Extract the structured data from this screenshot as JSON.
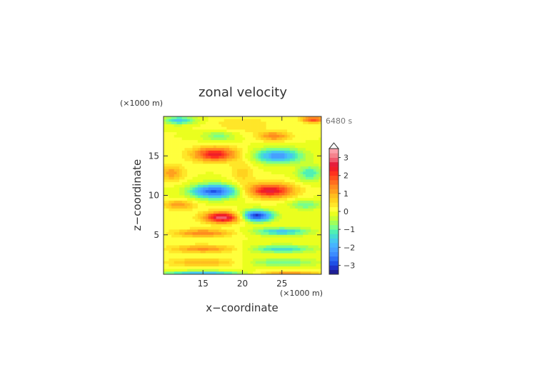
{
  "chart_data": {
    "type": "heatmap",
    "title": "zonal velocity",
    "xlabel": "x−coordinate",
    "ylabel": "z−coordinate",
    "x_unit_label": "(×1000 m)",
    "y_unit_label": "(×1000 m)",
    "time_label": "6480 s",
    "xlim": [
      10,
      30
    ],
    "ylim": [
      0,
      20
    ],
    "x_ticks": [
      15,
      20,
      25
    ],
    "y_ticks": [
      5,
      10,
      15
    ],
    "colorbar": {
      "levels": [
        -3.5,
        -3.25,
        -3,
        -2.75,
        -2.5,
        -2.25,
        -2,
        -1.75,
        -1.5,
        -1.25,
        -1,
        -0.75,
        -0.5,
        -0.25,
        0,
        0.25,
        0.5,
        0.75,
        1,
        1.25,
        1.5,
        1.75,
        2,
        2.25,
        2.5,
        2.75,
        3,
        3.25,
        3.5
      ],
      "colors": [
        "#1e1e96",
        "#1e32c8",
        "#1e50e6",
        "#2d6ef5",
        "#3c8cff",
        "#46a0ff",
        "#46b4ff",
        "#46c8f0",
        "#46dcd2",
        "#50f0b4",
        "#78ff8c",
        "#a0ff5a",
        "#c8ff32",
        "#eaff1e",
        "#ffff3c",
        "#ffe628",
        "#ffd21e",
        "#ffbe1e",
        "#ffa01e",
        "#ff8c1e",
        "#ff6e1e",
        "#ff501e",
        "#ff321e",
        "#f01e28",
        "#e61e3c",
        "#f05a6e",
        "#f5828c",
        "#faa0aa"
      ],
      "tick_labels": [
        "3",
        "2",
        "1",
        "0",
        "−1",
        "−2",
        "−3"
      ],
      "tick_values": [
        3,
        2,
        1,
        0,
        -1,
        -2,
        -3
      ]
    },
    "field": {
      "description_free": true,
      "features": [
        {
          "x": 16.5,
          "z": 15.2,
          "sx": 2.8,
          "sz": 0.9,
          "amp": 2.4
        },
        {
          "x": 24.5,
          "z": 15.0,
          "sx": 3.0,
          "sz": 0.9,
          "amp": -2.2
        },
        {
          "x": 16.5,
          "z": 10.5,
          "sx": 3.0,
          "sz": 0.9,
          "amp": -2.8
        },
        {
          "x": 23.5,
          "z": 10.6,
          "sx": 3.0,
          "sz": 0.9,
          "amp": 2.6
        },
        {
          "x": 17.5,
          "z": 7.2,
          "sx": 2.4,
          "sz": 0.7,
          "amp": 3.0
        },
        {
          "x": 21.8,
          "z": 7.4,
          "sx": 2.0,
          "sz": 0.7,
          "amp": -3.2
        },
        {
          "x": 17.0,
          "z": 17.5,
          "sx": 2.0,
          "sz": 0.6,
          "amp": -0.9
        },
        {
          "x": 24.0,
          "z": 17.5,
          "sx": 2.0,
          "sz": 0.6,
          "amp": 1.4
        },
        {
          "x": 12.0,
          "z": 19.5,
          "sx": 2.0,
          "sz": 0.5,
          "amp": -1.6
        },
        {
          "x": 29.0,
          "z": 19.6,
          "sx": 1.5,
          "sz": 0.4,
          "amp": 2.0
        },
        {
          "x": 11.0,
          "z": 12.8,
          "sx": 1.6,
          "sz": 1.0,
          "amp": 1.2
        },
        {
          "x": 28.5,
          "z": 12.8,
          "sx": 1.6,
          "sz": 1.0,
          "amp": -1.2
        },
        {
          "x": 12.0,
          "z": 8.8,
          "sx": 2.0,
          "sz": 0.6,
          "amp": 1.2
        },
        {
          "x": 28.0,
          "z": 8.8,
          "sx": 2.0,
          "sz": 0.6,
          "amp": -1.0
        },
        {
          "x": 15.0,
          "z": 5.2,
          "sx": 3.5,
          "sz": 0.5,
          "amp": 1.5
        },
        {
          "x": 25.0,
          "z": 5.4,
          "sx": 3.5,
          "sz": 0.5,
          "amp": -1.6
        },
        {
          "x": 15.0,
          "z": 3.2,
          "sx": 4.0,
          "sz": 0.5,
          "amp": 1.3
        },
        {
          "x": 25.0,
          "z": 3.2,
          "sx": 4.0,
          "sz": 0.5,
          "amp": -1.4
        },
        {
          "x": 15.0,
          "z": 1.5,
          "sx": 4.5,
          "sz": 0.5,
          "amp": 1.0
        },
        {
          "x": 25.0,
          "z": 1.5,
          "sx": 4.5,
          "sz": 0.5,
          "amp": -1.0
        },
        {
          "x": 15.0,
          "z": 0.1,
          "sx": 5.0,
          "sz": 0.3,
          "amp": -1.8
        },
        {
          "x": 26.0,
          "z": 0.1,
          "sx": 4.0,
          "sz": 0.3,
          "amp": 1.2
        },
        {
          "x": 20.0,
          "z": 12.8,
          "sx": 1.5,
          "sz": 1.5,
          "amp": 0.6
        },
        {
          "x": 20.0,
          "z": 19.0,
          "sx": 3.5,
          "sz": 1.0,
          "amp": 0.5
        }
      ]
    }
  }
}
